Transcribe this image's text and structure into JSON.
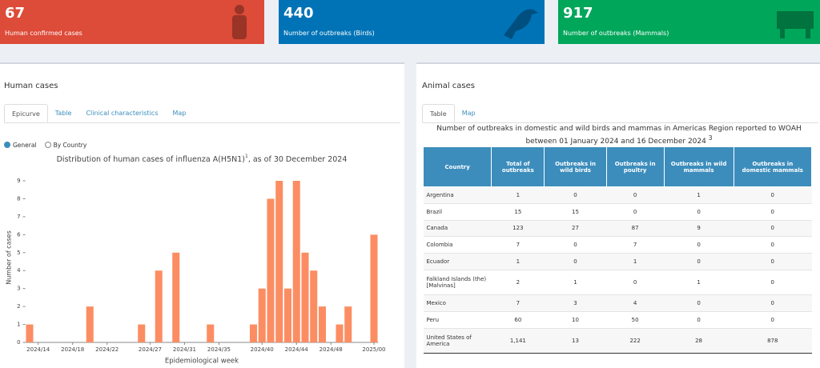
{
  "cards": [
    {
      "value": "67",
      "label": "Human confirmed cases",
      "color": "#dd4b39"
    },
    {
      "value": "440",
      "label": "Number of outbreaks (Birds)",
      "color": "#0073b7"
    },
    {
      "value": "917",
      "label": "Number of outbreaks (Mammals)",
      "color": "#00a65a"
    }
  ],
  "human": {
    "heading": "Human cases",
    "tabs": [
      "Epicurve",
      "Table",
      "Clinical characteristics",
      "Map"
    ],
    "radios": [
      "General",
      "By Country"
    ]
  },
  "chart_data": {
    "type": "bar",
    "title": "Distribution of human cases of influenza A(H5N1)",
    "title_note": "1",
    "title_suffix": ", as of 30 December 2024",
    "xlabel": "Epidemiological week",
    "ylabel": "Number of cases",
    "color": "#fc8d62",
    "categories": [
      null,
      "2024/14",
      null,
      null,
      null,
      "2024/18",
      null,
      null,
      null,
      "2024/22",
      null,
      null,
      null,
      null,
      "2024/27",
      null,
      null,
      null,
      "2024/31",
      null,
      null,
      null,
      "2024/35",
      null,
      null,
      null,
      null,
      "2024/40",
      null,
      null,
      null,
      "2024/44",
      null,
      null,
      null,
      "2024/48",
      null,
      null,
      null,
      null,
      "2025/00"
    ],
    "values": [
      1,
      0,
      0,
      0,
      0,
      0,
      0,
      2,
      0,
      0,
      0,
      0,
      0,
      1,
      0,
      4,
      0,
      5,
      0,
      0,
      0,
      1,
      0,
      0,
      0,
      0,
      1,
      3,
      8,
      9,
      3,
      9,
      5,
      4,
      2,
      0,
      1,
      2,
      0,
      0,
      6
    ],
    "ylim": [
      0,
      9.5
    ],
    "yticks": [
      0,
      1,
      2,
      3,
      4,
      5,
      6,
      7,
      8,
      9
    ],
    "grid": false
  },
  "animal": {
    "heading": "Animal cases",
    "tabs": [
      "Table",
      "Map"
    ],
    "table_title": "Number of outbreaks in domestic and wild birds and mammas in Americas Region reported to WOAH between 01 January 2024 and 16 December 2024",
    "table_note": "3",
    "columns": [
      "Country",
      "Total of outbreaks",
      "Outbreaks in wild birds",
      "Outbreaks in poultry",
      "Outbreaks in wild mammals",
      "Outbreaks in domestic mammals"
    ],
    "rows": [
      [
        "Argentina",
        "1",
        "0",
        "0",
        "1",
        "0"
      ],
      [
        "Brazil",
        "15",
        "15",
        "0",
        "0",
        "0"
      ],
      [
        "Canada",
        "123",
        "27",
        "87",
        "9",
        "0"
      ],
      [
        "Colombia",
        "7",
        "0",
        "7",
        "0",
        "0"
      ],
      [
        "Ecuador",
        "1",
        "0",
        "1",
        "0",
        "0"
      ],
      [
        "Falkland Islands (the) [Malvinas]",
        "2",
        "1",
        "0",
        "1",
        "0"
      ],
      [
        "Mexico",
        "7",
        "3",
        "4",
        "0",
        "0"
      ],
      [
        "Peru",
        "60",
        "10",
        "50",
        "0",
        "0"
      ],
      [
        "United States of America",
        "1,141",
        "13",
        "222",
        "28",
        "878"
      ]
    ]
  }
}
